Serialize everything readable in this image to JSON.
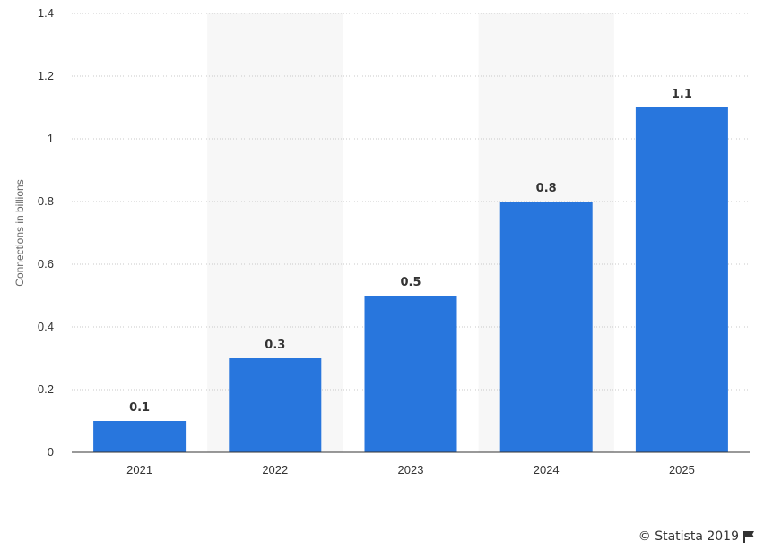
{
  "chart_data": {
    "type": "bar",
    "title": "",
    "xlabel": "",
    "ylabel": "Connections in billions",
    "categories": [
      "2021",
      "2022",
      "2023",
      "2024",
      "2025"
    ],
    "values": [
      0.1,
      0.3,
      0.5,
      0.8,
      1.1
    ],
    "data_labels": [
      "0.1",
      "0.3",
      "0.5",
      "0.8",
      "1.1"
    ],
    "ylim": [
      0,
      1.4
    ],
    "yticks": [
      0,
      0.2,
      0.4,
      0.6,
      0.8,
      1,
      1.2,
      1.4
    ],
    "ytick_labels": [
      "0",
      "0.2",
      "0.4",
      "0.6",
      "0.8",
      "1",
      "1.2",
      "1.4"
    ],
    "grid": true,
    "grid_style": "dotted",
    "alternating_column_shading": true,
    "legend": "none",
    "colors": {
      "bar": "#2876dd",
      "shade": "#f7f7f7",
      "grid": "#c8c8c8",
      "axis": "#333333",
      "text": "#333333"
    }
  },
  "credit": {
    "text": "© Statista 2019",
    "icon": "flag-icon"
  }
}
